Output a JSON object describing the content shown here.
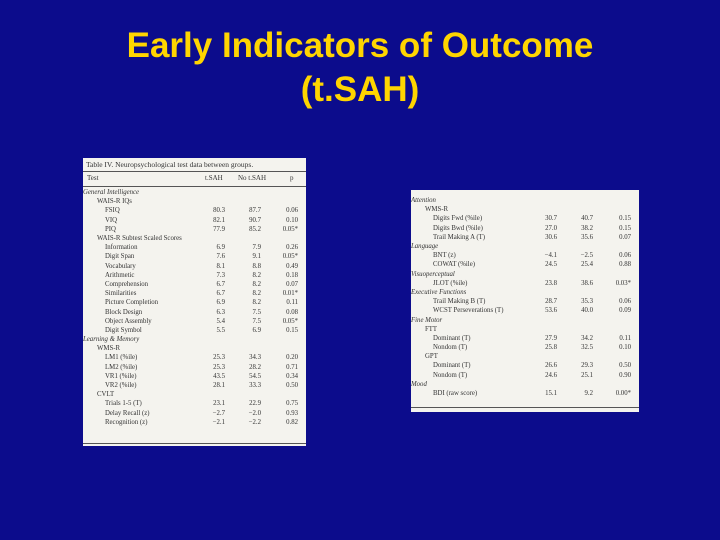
{
  "title": {
    "line1": "Early Indicators of Outcome",
    "line2": "(t.SAH)"
  },
  "table1": {
    "caption": "Table IV.  Neuropsychological test data between groups.",
    "headers": {
      "test": "Test",
      "tsah": "t.SAH",
      "no_tsah": "No t.SAH",
      "p": "p"
    },
    "rows": [
      {
        "label": "General Intelligence",
        "level": 0,
        "italic": true,
        "tsah": "",
        "no": "",
        "p": ""
      },
      {
        "label": "WAIS-R IQs",
        "level": 1,
        "italic": false,
        "tsah": "",
        "no": "",
        "p": ""
      },
      {
        "label": "FSIQ",
        "level": 2,
        "italic": false,
        "tsah": "80.3",
        "no": "87.7",
        "p": "0.06"
      },
      {
        "label": "VIQ",
        "level": 2,
        "italic": false,
        "tsah": "82.1",
        "no": "90.7",
        "p": "0.10"
      },
      {
        "label": "PIQ",
        "level": 2,
        "italic": false,
        "tsah": "77.9",
        "no": "85.2",
        "p": "0.05*"
      },
      {
        "label": "WAIS-R Subtest Scaled Scores",
        "level": 1,
        "italic": false,
        "tsah": "",
        "no": "",
        "p": ""
      },
      {
        "label": "Information",
        "level": 2,
        "italic": false,
        "tsah": "6.9",
        "no": "7.9",
        "p": "0.26"
      },
      {
        "label": "Digit Span",
        "level": 2,
        "italic": false,
        "tsah": "7.6",
        "no": "9.1",
        "p": "0.05*"
      },
      {
        "label": "Vocabulary",
        "level": 2,
        "italic": false,
        "tsah": "8.1",
        "no": "8.8",
        "p": "0.49"
      },
      {
        "label": "Arithmetic",
        "level": 2,
        "italic": false,
        "tsah": "7.3",
        "no": "8.2",
        "p": "0.18"
      },
      {
        "label": "Comprehension",
        "level": 2,
        "italic": false,
        "tsah": "6.7",
        "no": "8.2",
        "p": "0.07"
      },
      {
        "label": "Similarities",
        "level": 2,
        "italic": false,
        "tsah": "6.7",
        "no": "8.2",
        "p": "0.01*"
      },
      {
        "label": "Picture Completion",
        "level": 2,
        "italic": false,
        "tsah": "6.9",
        "no": "8.2",
        "p": "0.11"
      },
      {
        "label": "Block Design",
        "level": 2,
        "italic": false,
        "tsah": "6.3",
        "no": "7.5",
        "p": "0.08"
      },
      {
        "label": "Object Assembly",
        "level": 2,
        "italic": false,
        "tsah": "5.4",
        "no": "7.5",
        "p": "0.05*"
      },
      {
        "label": "Digit Symbol",
        "level": 2,
        "italic": false,
        "tsah": "5.5",
        "no": "6.9",
        "p": "0.15"
      },
      {
        "label": "Learning & Memory",
        "level": 0,
        "italic": true,
        "tsah": "",
        "no": "",
        "p": ""
      },
      {
        "label": "WMS-R",
        "level": 1,
        "italic": false,
        "tsah": "",
        "no": "",
        "p": ""
      },
      {
        "label": "LM1 (%ile)",
        "level": 2,
        "italic": false,
        "tsah": "25.3",
        "no": "34.3",
        "p": "0.20"
      },
      {
        "label": "LM2 (%ile)",
        "level": 2,
        "italic": false,
        "tsah": "25.3",
        "no": "28.2",
        "p": "0.71"
      },
      {
        "label": "VR1 (%ile)",
        "level": 2,
        "italic": false,
        "tsah": "43.5",
        "no": "54.5",
        "p": "0.34"
      },
      {
        "label": "VR2 (%ile)",
        "level": 2,
        "italic": false,
        "tsah": "28.1",
        "no": "33.3",
        "p": "0.50"
      },
      {
        "label": "CVLT",
        "level": 1,
        "italic": false,
        "tsah": "",
        "no": "",
        "p": ""
      },
      {
        "label": "Trials 1-5 (T)",
        "level": 2,
        "italic": false,
        "tsah": "23.1",
        "no": "22.9",
        "p": "0.75"
      },
      {
        "label": "Delay Recall (z)",
        "level": 2,
        "italic": false,
        "tsah": "−2.7",
        "no": "−2.0",
        "p": "0.93"
      },
      {
        "label": "Recognition (z)",
        "level": 2,
        "italic": false,
        "tsah": "−2.1",
        "no": "−2.2",
        "p": "0.82"
      }
    ]
  },
  "table2": {
    "rows": [
      {
        "label": "Attention",
        "level": 0,
        "italic": true,
        "tsah": "",
        "no": "",
        "p": ""
      },
      {
        "label": "WMS-R",
        "level": 1,
        "italic": false,
        "tsah": "",
        "no": "",
        "p": ""
      },
      {
        "label": "Digits Fwd (%ile)",
        "level": 2,
        "italic": false,
        "tsah": "30.7",
        "no": "40.7",
        "p": "0.15"
      },
      {
        "label": "Digits Bwd (%ile)",
        "level": 2,
        "italic": false,
        "tsah": "27.0",
        "no": "38.2",
        "p": "0.15"
      },
      {
        "label": "Trail Making A (T)",
        "level": 2,
        "italic": false,
        "tsah": "30.6",
        "no": "35.6",
        "p": "0.07"
      },
      {
        "label": "Language",
        "level": 0,
        "italic": true,
        "tsah": "",
        "no": "",
        "p": ""
      },
      {
        "label": "BNT (z)",
        "level": 2,
        "italic": false,
        "tsah": "−4.1",
        "no": "−2.5",
        "p": "0.06"
      },
      {
        "label": "COWAT (%ile)",
        "level": 2,
        "italic": false,
        "tsah": "24.5",
        "no": "25.4",
        "p": "0.88"
      },
      {
        "label": "Visuoperceptual",
        "level": 0,
        "italic": true,
        "tsah": "",
        "no": "",
        "p": ""
      },
      {
        "label": "JLOT (%ile)",
        "level": 2,
        "italic": false,
        "tsah": "23.8",
        "no": "38.6",
        "p": "0.03*"
      },
      {
        "label": "Executive Functions",
        "level": 0,
        "italic": true,
        "tsah": "",
        "no": "",
        "p": ""
      },
      {
        "label": "Trail Making B (T)",
        "level": 2,
        "italic": false,
        "tsah": "28.7",
        "no": "35.3",
        "p": "0.06"
      },
      {
        "label": "WCST Perseverations (T)",
        "level": 2,
        "italic": false,
        "tsah": "53.6",
        "no": "40.0",
        "p": "0.09"
      },
      {
        "label": "Fine Motor",
        "level": 0,
        "italic": true,
        "tsah": "",
        "no": "",
        "p": ""
      },
      {
        "label": "FTT",
        "level": 1,
        "italic": false,
        "tsah": "",
        "no": "",
        "p": ""
      },
      {
        "label": "Dominant (T)",
        "level": 2,
        "italic": false,
        "tsah": "27.9",
        "no": "34.2",
        "p": "0.11"
      },
      {
        "label": "Nondom (T)",
        "level": 2,
        "italic": false,
        "tsah": "25.8",
        "no": "32.5",
        "p": "0.10"
      },
      {
        "label": "GPT",
        "level": 1,
        "italic": false,
        "tsah": "",
        "no": "",
        "p": ""
      },
      {
        "label": "Dominant (T)",
        "level": 2,
        "italic": false,
        "tsah": "26.6",
        "no": "29.3",
        "p": "0.50"
      },
      {
        "label": "Nondom (T)",
        "level": 2,
        "italic": false,
        "tsah": "24.6",
        "no": "25.1",
        "p": "0.90"
      },
      {
        "label": "Mood",
        "level": 0,
        "italic": true,
        "tsah": "",
        "no": "",
        "p": ""
      },
      {
        "label": "BDI (raw score)",
        "level": 2,
        "italic": false,
        "tsah": "15.1",
        "no": "9.2",
        "p": "0.00*"
      }
    ]
  }
}
